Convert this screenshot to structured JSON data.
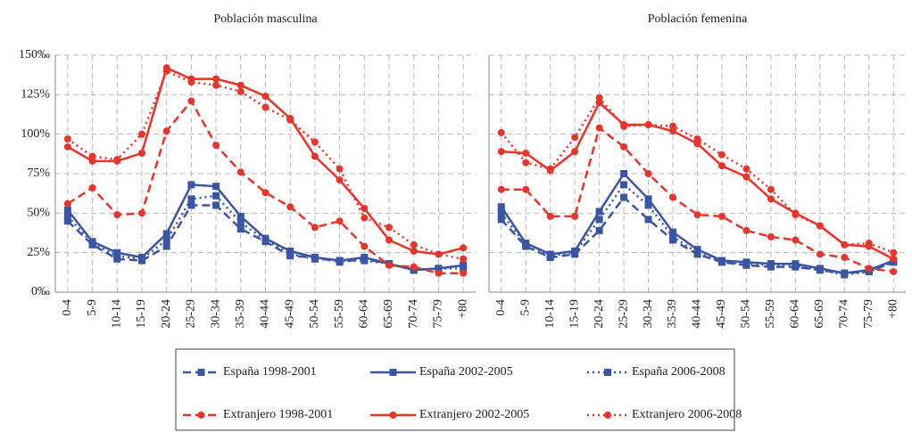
{
  "chart_data": [
    {
      "type": "line",
      "title": "Población masculina",
      "categories": [
        "0-4",
        "5-9",
        "10-14",
        "15-19",
        "20-24",
        "25-29",
        "30-34",
        "35-39",
        "40-44",
        "45-49",
        "50-54",
        "55-59",
        "60-64",
        "65-69",
        "70-74",
        "75-79",
        "+80"
      ],
      "ylim": [
        0,
        150
      ],
      "yticks": [
        {
          "value": 0,
          "label": "0‰"
        },
        {
          "value": 25,
          "label": "25%"
        },
        {
          "value": 50,
          "label": "50%"
        },
        {
          "value": 75,
          "label": "75%"
        },
        {
          "value": 100,
          "label": "100%"
        },
        {
          "value": 125,
          "label": "125%"
        },
        {
          "value": 150,
          "label": "150‰"
        }
      ],
      "grid": true,
      "series": [
        {
          "name": "España 1998-2001",
          "color": "#3a55a4",
          "dash": "dashed",
          "marker": "square",
          "values": [
            45,
            30,
            21,
            20,
            29,
            55,
            55,
            40,
            32,
            23,
            22,
            19,
            21,
            18,
            14,
            15,
            17
          ]
        },
        {
          "name": "España 2002-2005",
          "color": "#3a55a4",
          "dash": "solid",
          "marker": "square",
          "values": [
            52,
            32,
            25,
            22,
            37,
            68,
            67,
            48,
            34,
            26,
            22,
            20,
            22,
            18,
            14,
            15,
            17
          ]
        },
        {
          "name": "España 2006-2008",
          "color": "#3a55a4",
          "dash": "dotted",
          "marker": "square",
          "values": [
            48,
            31,
            23,
            21,
            33,
            59,
            61,
            44,
            33,
            24,
            21,
            20,
            20,
            18,
            14,
            15,
            15
          ]
        },
        {
          "name": "Extranjero 1998-2001",
          "color": "#e8342a",
          "dash": "dashed",
          "marker": "circle",
          "values": [
            56,
            66,
            49,
            50,
            102,
            121,
            93,
            76,
            63,
            54,
            41,
            45,
            29,
            17,
            16,
            12,
            12
          ]
        },
        {
          "name": "Extranjero 2002-2005",
          "color": "#e8342a",
          "dash": "solid",
          "marker": "circle",
          "values": [
            92,
            83,
            83,
            88,
            142,
            135,
            135,
            131,
            124,
            110,
            86,
            71,
            53,
            33,
            26,
            24,
            28
          ]
        },
        {
          "name": "Extranjero 2006-2008",
          "color": "#e8342a",
          "dash": "dotted",
          "marker": "circle",
          "values": [
            97,
            86,
            84,
            100,
            140,
            133,
            131,
            127,
            117,
            109,
            95,
            78,
            47,
            41,
            30,
            24,
            21
          ]
        }
      ]
    },
    {
      "type": "line",
      "title": "Población femenina",
      "categories": [
        "0-4",
        "5-9",
        "10-14",
        "15-19",
        "20-24",
        "25-29",
        "30-34",
        "35-39",
        "40-44",
        "45-49",
        "50-54",
        "55-59",
        "60-64",
        "65-69",
        "70-74",
        "75-79",
        "+80"
      ],
      "ylim": [
        0,
        150
      ],
      "grid": true,
      "series": [
        {
          "name": "España 1998-2001",
          "color": "#3a55a4",
          "dash": "dashed",
          "marker": "square",
          "values": [
            46,
            29,
            22,
            24,
            39,
            60,
            46,
            33,
            24,
            19,
            17,
            16,
            16,
            14,
            12,
            13,
            19
          ]
        },
        {
          "name": "España 2002-2005",
          "color": "#3a55a4",
          "dash": "solid",
          "marker": "square",
          "values": [
            54,
            31,
            24,
            26,
            51,
            75,
            59,
            38,
            27,
            20,
            19,
            18,
            18,
            15,
            12,
            14,
            20
          ]
        },
        {
          "name": "España 2006-2008",
          "color": "#3a55a4",
          "dash": "dotted",
          "marker": "square",
          "values": [
            50,
            30,
            23,
            25,
            46,
            68,
            55,
            35,
            25,
            19,
            18,
            17,
            17,
            14,
            11,
            13,
            19
          ]
        },
        {
          "name": "Extranjero 1998-2001",
          "color": "#e8342a",
          "dash": "dashed",
          "marker": "circle",
          "values": [
            65,
            65,
            48,
            48,
            104,
            92,
            75,
            60,
            49,
            48,
            39,
            35,
            33,
            24,
            22,
            15,
            13
          ]
        },
        {
          "name": "Extranjero 2002-2005",
          "color": "#e8342a",
          "dash": "solid",
          "marker": "circle",
          "values": [
            89,
            88,
            77,
            89,
            120,
            106,
            106,
            102,
            94,
            80,
            73,
            59,
            50,
            42,
            30,
            29,
            21
          ]
        },
        {
          "name": "Extranjero 2006-2008",
          "color": "#e8342a",
          "dash": "dotted",
          "marker": "circle",
          "values": [
            101,
            82,
            78,
            98,
            123,
            105,
            106,
            105,
            97,
            87,
            78,
            65,
            49,
            42,
            30,
            31,
            25
          ]
        }
      ]
    }
  ]
}
